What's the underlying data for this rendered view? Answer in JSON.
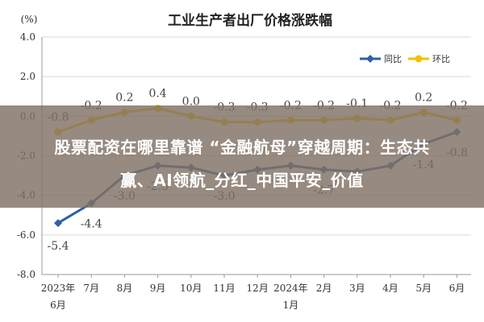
{
  "chart_data": {
    "type": "line",
    "title": "工业生产者出厂价格涨跌幅",
    "ylabel": "(%)",
    "ylim": [
      -8.0,
      4.0
    ],
    "yticks": [
      "4.0",
      "2.0",
      "0.0",
      "-2.0",
      "-4.0",
      "-6.0",
      "-8.0"
    ],
    "categories": [
      {
        "top": "2023年",
        "bottom": "6月"
      },
      {
        "top": "7月",
        "bottom": ""
      },
      {
        "top": "8月",
        "bottom": ""
      },
      {
        "top": "9月",
        "bottom": ""
      },
      {
        "top": "10月",
        "bottom": ""
      },
      {
        "top": "11月",
        "bottom": ""
      },
      {
        "top": "12月",
        "bottom": ""
      },
      {
        "top": "2024年",
        "bottom": "1月"
      },
      {
        "top": "2月",
        "bottom": ""
      },
      {
        "top": "3月",
        "bottom": ""
      },
      {
        "top": "4月",
        "bottom": ""
      },
      {
        "top": "5月",
        "bottom": ""
      },
      {
        "top": "6月",
        "bottom": ""
      }
    ],
    "legend_position": "top-right",
    "grid": true,
    "series": [
      {
        "name": "同比",
        "color": "#2e5fa8",
        "marker": "diamond",
        "values": [
          -5.4,
          -4.4,
          -3.0,
          -2.5,
          -2.6,
          -3.0,
          -2.7,
          -2.5,
          -2.7,
          -2.8,
          -2.5,
          -1.4,
          -0.8
        ],
        "labels": [
          "-5.4",
          "-4.4",
          "-3.0",
          "-2.5",
          "",
          "-3.0",
          "",
          "",
          "-2.7",
          "",
          "",
          "-1.4",
          "-0.8"
        ]
      },
      {
        "name": "环比",
        "color": "#f2c200",
        "marker": "circle",
        "values": [
          -0.8,
          -0.2,
          0.2,
          0.4,
          0.0,
          -0.3,
          -0.3,
          -0.2,
          -0.2,
          -0.1,
          -0.2,
          0.2,
          -0.2
        ],
        "labels": [
          "-0.8",
          "-0.2",
          "0.2",
          "0.4",
          "0.0",
          "-0.3",
          "-0.3",
          "-0.2",
          "-0.2",
          "-0.1",
          "-0.2",
          "0.2",
          "-0.2"
        ]
      }
    ]
  },
  "banner": {
    "line1": "股票配资在哪里靠谱 “金融航母”穿越周期：生态共",
    "line2": "赢、AI领航_分红_中国平安_价值"
  }
}
